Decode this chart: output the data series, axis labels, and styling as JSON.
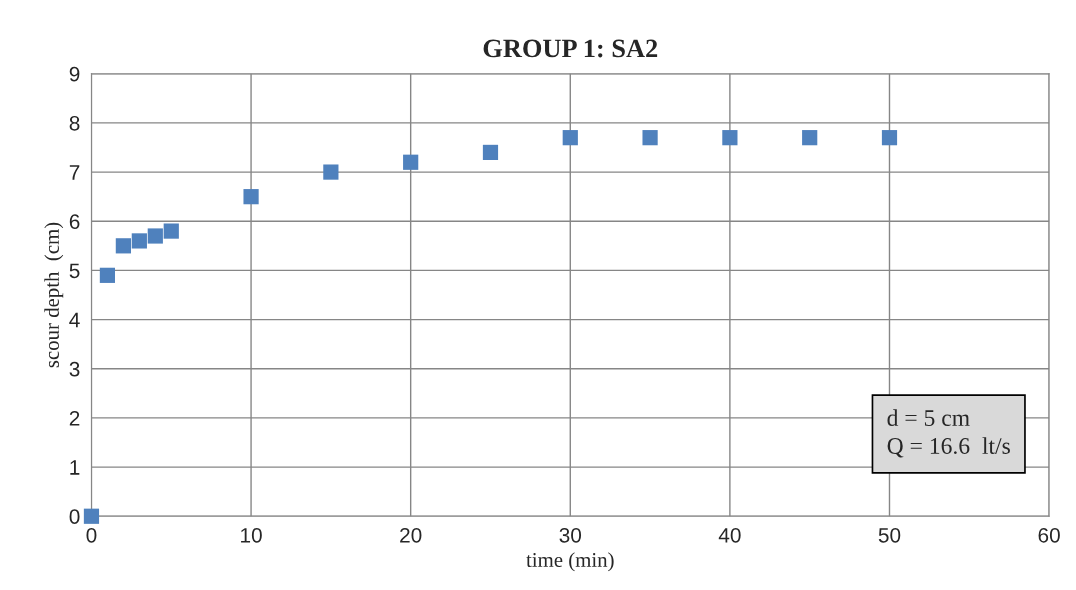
{
  "chart_data": {
    "type": "scatter",
    "title": "GROUP 1: SA2",
    "xlabel": "time (min)",
    "ylabel": "scour depth  (cm)",
    "annotations": [
      "d = 5 cm\nQ = 16.6  lt/s"
    ],
    "x": [
      0,
      1,
      2,
      3,
      4,
      5,
      10,
      15,
      20,
      25,
      30,
      35,
      40,
      45,
      50
    ],
    "series": [
      {
        "color": "#4f81bd",
        "values": [
          0,
          4.9,
          5.5,
          5.6,
          5.7,
          5.8,
          6.5,
          7.0,
          7.2,
          7.4,
          7.7,
          7.7,
          7.7,
          7.7,
          7.7
        ]
      }
    ],
    "xlim": [
      0,
      60
    ],
    "xticks": [
      0,
      10,
      20,
      30,
      40,
      50,
      60
    ],
    "ylim": [
      0,
      9
    ],
    "yticks": [
      0,
      1,
      2,
      3,
      4,
      5,
      6,
      7,
      8,
      9
    ],
    "grid": true,
    "marker": "square",
    "legend": false
  }
}
